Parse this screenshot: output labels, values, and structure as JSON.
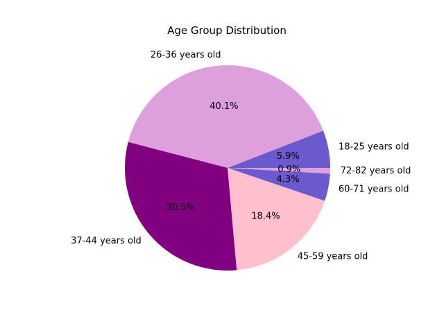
{
  "chart_data": {
    "type": "pie",
    "title": "Age Group Distribution",
    "slices": [
      {
        "label": "18-25 years old",
        "value": 5.9,
        "pct_label": "5.9%",
        "color": "#6a5acd"
      },
      {
        "label": "26-36 years old",
        "value": 40.1,
        "pct_label": "40.1%",
        "color": "#dda0dd"
      },
      {
        "label": "37-44 years old",
        "value": 30.5,
        "pct_label": "30.5%",
        "color": "#800080"
      },
      {
        "label": "45-59 years old",
        "value": 18.4,
        "pct_label": "18.4%",
        "color": "#ffc0cb"
      },
      {
        "label": "60-71 years old",
        "value": 4.3,
        "pct_label": "4.3%",
        "color": "#6a5acd"
      },
      {
        "label": "72-82 years old",
        "value": 0.9,
        "pct_label": "0.9%",
        "color": "#dda0dd"
      }
    ],
    "start_angle_deg": 0,
    "direction": "counterclockwise"
  }
}
